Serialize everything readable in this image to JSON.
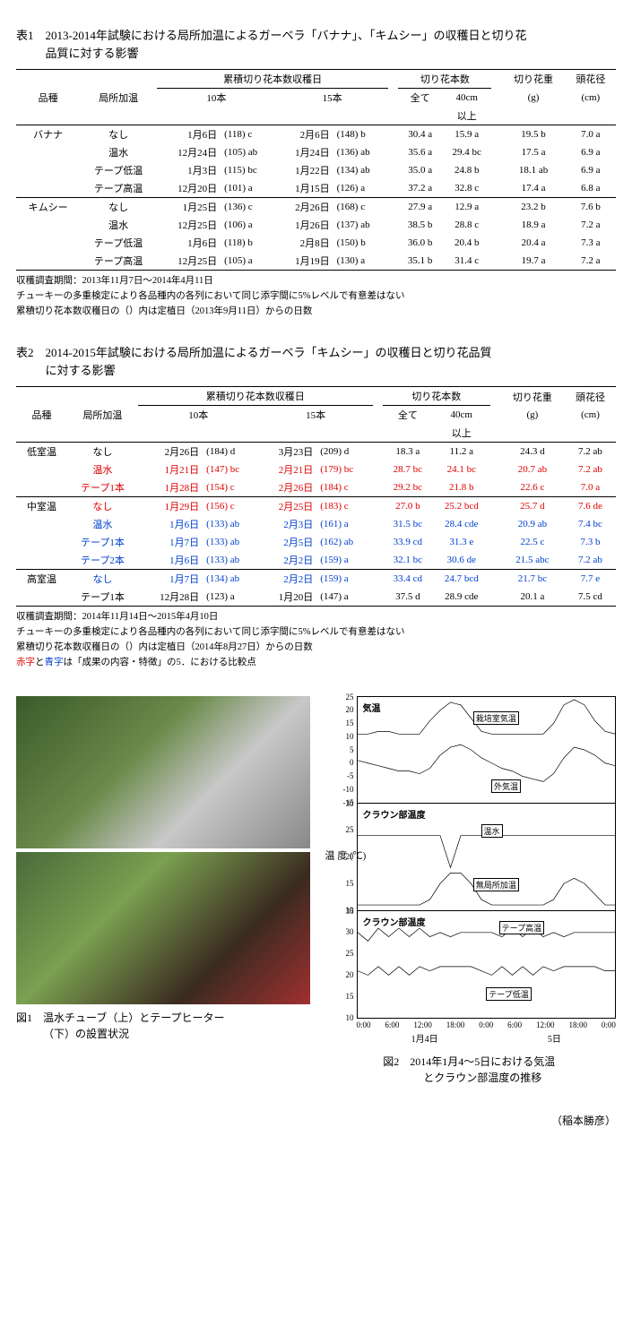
{
  "table1": {
    "caption_line1": "表1　2013-2014年試験における局所加温によるガーベラ「バナナ」、「キムシー」の収穫日と切り花",
    "caption_line2": "品質に対する影響",
    "headers": {
      "hinshu": "品種",
      "kyokusho": "局所加温",
      "ruiseki": "累積切り花本数収穫日",
      "honsu_group": "切り花本数",
      "jyuryo": "切り花重",
      "kakei": "頭花径",
      "sub10": "10本",
      "sub15": "15本",
      "subete": "全て",
      "cm40": "40cm",
      "ijo": "以上",
      "g": "(g)",
      "cm": "(cm)"
    },
    "groups": [
      {
        "name": "バナナ",
        "rows": [
          {
            "treat": "なし",
            "d10": "1月6日",
            "n10": "(118) c",
            "d15": "2月6日",
            "n15": "(148) b",
            "all": "30.4 a",
            "c40": "15.9 a",
            "wt": "19.5 b",
            "dia": "7.0 a"
          },
          {
            "treat": "温水",
            "d10": "12月24日",
            "n10": "(105) ab",
            "d15": "1月24日",
            "n15": "(136) ab",
            "all": "35.6 a",
            "c40": "29.4 bc",
            "wt": "17.5 a",
            "dia": "6.9 a"
          },
          {
            "treat": "テープ低温",
            "d10": "1月3日",
            "n10": "(115) bc",
            "d15": "1月22日",
            "n15": "(134) ab",
            "all": "35.0 a",
            "c40": "24.8 b",
            "wt": "18.1 ab",
            "dia": "6.9 a"
          },
          {
            "treat": "テープ高温",
            "d10": "12月20日",
            "n10": "(101) a",
            "d15": "1月15日",
            "n15": "(126) a",
            "all": "37.2 a",
            "c40": "32.8 c",
            "wt": "17.4 a",
            "dia": "6.8 a"
          }
        ]
      },
      {
        "name": "キムシー",
        "rows": [
          {
            "treat": "なし",
            "d10": "1月25日",
            "n10": "(136) c",
            "d15": "2月26日",
            "n15": "(168) c",
            "all": "27.9 a",
            "c40": "12.9 a",
            "wt": "23.2 b",
            "dia": "7.6 b"
          },
          {
            "treat": "温水",
            "d10": "12月25日",
            "n10": "(106) a",
            "d15": "1月26日",
            "n15": "(137) ab",
            "all": "38.5 b",
            "c40": "28.8 c",
            "wt": "18.9 a",
            "dia": "7.2 a"
          },
          {
            "treat": "テープ低温",
            "d10": "1月6日",
            "n10": "(118) b",
            "d15": "2月8日",
            "n15": "(150) b",
            "all": "36.0 b",
            "c40": "20.4 b",
            "wt": "20.4 a",
            "dia": "7.3 a"
          },
          {
            "treat": "テープ高温",
            "d10": "12月25日",
            "n10": "(105) a",
            "d15": "1月19日",
            "n15": "(130) a",
            "all": "35.1 b",
            "c40": "31.4 c",
            "wt": "19.7 a",
            "dia": "7.2 a"
          }
        ]
      }
    ],
    "notes": [
      "収穫調査期間：2013年11月7日～2014年4月11日",
      "チューキーの多重検定により各品種内の各列において同じ添字間に5%レベルで有意差はない",
      "累積切り花本数収穫日の（）内は定植日（2013年9月11日）からの日数"
    ]
  },
  "table2": {
    "caption_line1": "表2　2014-2015年試験における局所加温によるガーベラ「キムシー」の収穫日と切り花品質",
    "caption_line2": "に対する影響",
    "headers": {
      "hinshu": "品種",
      "kyokusho": "局所加温",
      "ruiseki": "累積切り花本数収穫日",
      "honsu_group": "切り花本数",
      "jyuryo": "切り花重",
      "kakei": "頭花径",
      "sub10": "10本",
      "sub15": "15本",
      "subete": "全て",
      "cm40": "40cm",
      "ijo": "以上",
      "g": "(g)",
      "cm": "(cm)"
    },
    "groups": [
      {
        "name": "低室温",
        "rows": [
          {
            "cls": "",
            "treat": "なし",
            "d10": "2月26日",
            "n10": "(184) d",
            "d15": "3月23日",
            "n15": "(209) d",
            "all": "18.3 a",
            "c40": "11.2 a",
            "wt": "24.3 d",
            "dia": "7.2 ab"
          },
          {
            "cls": "red",
            "treat": "温水",
            "d10": "1月21日",
            "n10": "(147) bc",
            "d15": "2月21日",
            "n15": "(179) bc",
            "all": "28.7 bc",
            "c40": "24.1 bc",
            "wt": "20.7 ab",
            "dia": "7.2 ab"
          },
          {
            "cls": "red",
            "treat": "テープ1本",
            "d10": "1月28日",
            "n10": "(154) c",
            "d15": "2月26日",
            "n15": "(184) c",
            "all": "29.2 bc",
            "c40": "21.8 b",
            "wt": "22.6 c",
            "dia": "7.0 a"
          }
        ]
      },
      {
        "name": "中室温",
        "rows": [
          {
            "cls": "red",
            "treat": "なし",
            "d10": "1月29日",
            "n10": "(156) c",
            "d15": "2月25日",
            "n15": "(183) c",
            "all": "27.0 b",
            "c40": "25.2 bcd",
            "wt": "25.7 d",
            "dia": "7.6 de"
          },
          {
            "cls": "blue",
            "treat": "温水",
            "d10": "1月6日",
            "n10": "(133) ab",
            "d15": "2月3日",
            "n15": "(161) a",
            "all": "31.5 bc",
            "c40": "28.4 cde",
            "wt": "20.9 ab",
            "dia": "7.4 bc"
          },
          {
            "cls": "blue",
            "treat": "テープ1本",
            "d10": "1月7日",
            "n10": "(133) ab",
            "d15": "2月5日",
            "n15": "(162) ab",
            "all": "33.9 cd",
            "c40": "31.3 e",
            "wt": "22.5 c",
            "dia": "7.3 b"
          },
          {
            "cls": "blue",
            "treat": "テープ2本",
            "d10": "1月6日",
            "n10": "(133) ab",
            "d15": "2月2日",
            "n15": "(159) a",
            "all": "32.1 bc",
            "c40": "30.6 de",
            "wt": "21.5 abc",
            "dia": "7.2 ab"
          }
        ]
      },
      {
        "name": "高室温",
        "rows": [
          {
            "cls": "blue",
            "treat": "なし",
            "d10": "1月7日",
            "n10": "(134) ab",
            "d15": "2月2日",
            "n15": "(159) a",
            "all": "33.4 cd",
            "c40": "24.7 bcd",
            "wt": "21.7 bc",
            "dia": "7.7 e"
          },
          {
            "cls": "",
            "treat": "テープ1本",
            "d10": "12月28日",
            "n10": "(123) a",
            "d15": "1月20日",
            "n15": "(147) a",
            "all": "37.5 d",
            "c40": "28.9 cde",
            "wt": "20.1 a",
            "dia": "7.5 cd"
          }
        ]
      }
    ],
    "notes": [
      "収穫調査期間：2014年11月14日～2015年4月10日",
      "チューキーの多重検定により各品種内の各列において同じ添字間に5%レベルで有意差はない",
      "累積切り花本数収穫日の（）内は定植日（2014年8月27日）からの日数"
    ],
    "note_colored_prefix_red": "赤字",
    "note_colored_mid": "と",
    "note_colored_prefix_blue": "青字",
    "note_colored_tail": "は「成果の内容・特徴」の5．における比較点"
  },
  "fig1": {
    "caption_l1": "図1　温水チューブ（上）とテープヒーター",
    "caption_l2": "（下）の設置状況"
  },
  "fig2": {
    "caption_l1": "図2　2014年1月4～5日における気温",
    "caption_l2": "とクラウン部温度の推移",
    "y_title": "温 度 (℃)",
    "panelA": {
      "title": "気温",
      "labels": {
        "inside": "栽培室気温",
        "outside": "外気温"
      },
      "ylim": [
        -15,
        25
      ],
      "yticks": [
        -15,
        -10,
        -5,
        0,
        5,
        10,
        15,
        20,
        25
      ],
      "series": {
        "inside": [
          11,
          11,
          12,
          12,
          11,
          11,
          11,
          16,
          20,
          23,
          22,
          17,
          12,
          11,
          11,
          11,
          11,
          11,
          11,
          15,
          22,
          24,
          22,
          16,
          12,
          11
        ],
        "outside": [
          1,
          0,
          -1,
          -2,
          -3,
          -3,
          -4,
          -2,
          3,
          6,
          7,
          5,
          2,
          0,
          -2,
          -3,
          -5,
          -6,
          -7,
          -4,
          2,
          6,
          5,
          3,
          0,
          -1
        ]
      }
    },
    "panelB": {
      "title": "クラウン部温度",
      "labels": {
        "onsui": "温水",
        "none": "無局所加温"
      },
      "ylim": [
        10,
        30
      ],
      "yticks": [
        10,
        15,
        20,
        25,
        30
      ],
      "series": {
        "onsui": [
          24,
          24,
          24,
          24,
          24,
          24,
          24,
          24,
          24,
          18,
          24,
          24,
          24,
          24,
          24,
          24,
          24,
          24,
          24,
          24,
          24,
          24,
          24,
          24,
          24,
          24
        ],
        "none": [
          11,
          11,
          11,
          11,
          11,
          11,
          11,
          12,
          15,
          17,
          17,
          15,
          12,
          11,
          11,
          11,
          11,
          11,
          11,
          12,
          15,
          16,
          15,
          13,
          11,
          11
        ]
      }
    },
    "panelC": {
      "title": "クラウン部温度",
      "labels": {
        "high": "テープ高温",
        "low": "テープ低温"
      },
      "ylim": [
        10,
        35
      ],
      "yticks": [
        10,
        15,
        20,
        25,
        30,
        35
      ],
      "series": {
        "high": [
          30,
          28,
          31,
          29,
          31,
          29,
          31,
          29,
          30,
          29,
          30,
          30,
          30,
          30,
          29,
          31,
          29,
          31,
          29,
          30,
          29,
          30,
          30,
          30,
          30,
          30
        ],
        "low": [
          21,
          20,
          22,
          20,
          22,
          20,
          22,
          21,
          22,
          22,
          22,
          22,
          21,
          20,
          22,
          20,
          22,
          20,
          22,
          21,
          22,
          22,
          22,
          22,
          21,
          21
        ]
      }
    },
    "xticks": [
      "0:00",
      "6:00",
      "12:00",
      "18:00",
      "0:00",
      "6:00",
      "12:00",
      "18:00",
      "0:00"
    ],
    "xdays": [
      "1月4日",
      "5日"
    ]
  },
  "author": "（稲本勝彦）"
}
